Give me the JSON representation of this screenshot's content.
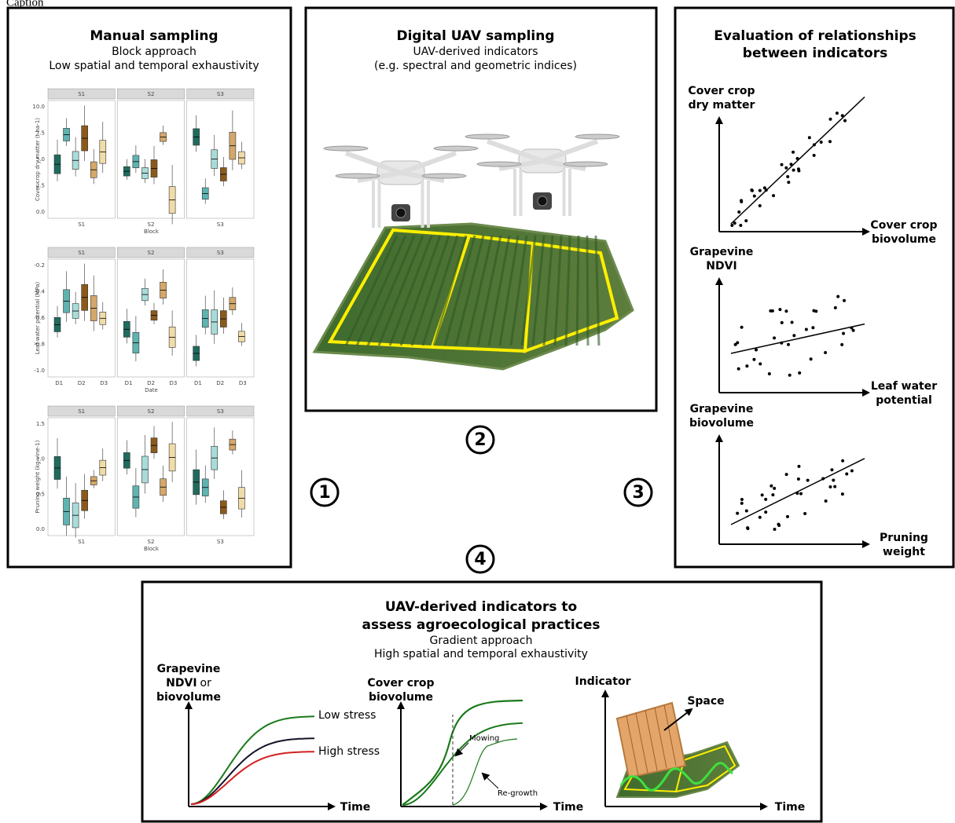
{
  "caption": "Caption",
  "panel1": {
    "title": "Manual sampling",
    "subtitle": [
      "Block approach",
      "Low spatial and temporal exhaustivity"
    ],
    "plots": [
      {
        "facets": [
          "S1",
          "S2",
          "S3"
        ],
        "y_label": "Cover crop dry matter (t ha-1)",
        "y_ticks": [
          "10.0",
          "7.5",
          "5.0",
          "2.5",
          "0.0"
        ],
        "x_ticks": [
          [
            "S1"
          ],
          [
            "S2"
          ],
          [
            "S3"
          ]
        ],
        "x_label": "Block"
      },
      {
        "facets": [
          "S1",
          "S2",
          "S3"
        ],
        "y_label": "Leaf water potential (MPa)",
        "y_ticks": [
          "-0.2",
          "-0.4",
          "-0.6",
          "-0.8",
          "-1.0"
        ],
        "x_ticks": [
          [
            "D1",
            "D2",
            "D3"
          ],
          [
            "D1",
            "D2",
            "D3"
          ],
          [
            "D1",
            "D2",
            "D3"
          ]
        ],
        "x_label": "Date"
      },
      {
        "facets": [
          "S1",
          "S2",
          "S3"
        ],
        "y_label": "Pruning weight (kg vine-1)",
        "y_ticks": [
          "1.5",
          "1.0",
          "0.5",
          "0.0"
        ],
        "x_ticks": [
          [
            "S1"
          ],
          [
            "S2"
          ],
          [
            "S3"
          ]
        ],
        "x_label": "Block"
      }
    ]
  },
  "panel2": {
    "title": "Digital UAV sampling",
    "subtitle": [
      "UAV-derived indicators",
      "(e.g. spectral and geometric indices)"
    ]
  },
  "steps": [
    "1",
    "2",
    "3",
    "4"
  ],
  "panel3": {
    "title": [
      "Evaluation of relationships",
      "between indicators"
    ],
    "plots": [
      {
        "y_label": [
          "Cover crop",
          "dry matter"
        ],
        "x_label": [
          "Cover crop",
          "biovolume"
        ]
      },
      {
        "y_label": [
          "Grapevine",
          "NDVI"
        ],
        "x_label": [
          "Leaf water",
          "potential"
        ]
      },
      {
        "y_label": [
          "Grapevine",
          "biovolume"
        ],
        "x_label": [
          "Pruning",
          "weight"
        ]
      }
    ]
  },
  "panel4": {
    "title": [
      "UAV-derived indicators to",
      "assess agroecological practices"
    ],
    "subtitle": [
      "Gradient approach",
      "High spatial and temporal exhaustivity"
    ],
    "plots": [
      {
        "y_label": [
          "Grapevine",
          "NDVI",
          "or",
          "biovolume"
        ],
        "curve_labels": [
          "Low stress",
          "High stress"
        ],
        "x_label": "Time"
      },
      {
        "y_label": [
          "Cover crop",
          "biovolume"
        ],
        "annotations": [
          "Mowing",
          "Re-growth"
        ],
        "x_label": "Time"
      },
      {
        "y_label": "Indicator",
        "annotations": [
          "Space"
        ],
        "x_label": "Time"
      }
    ]
  }
}
